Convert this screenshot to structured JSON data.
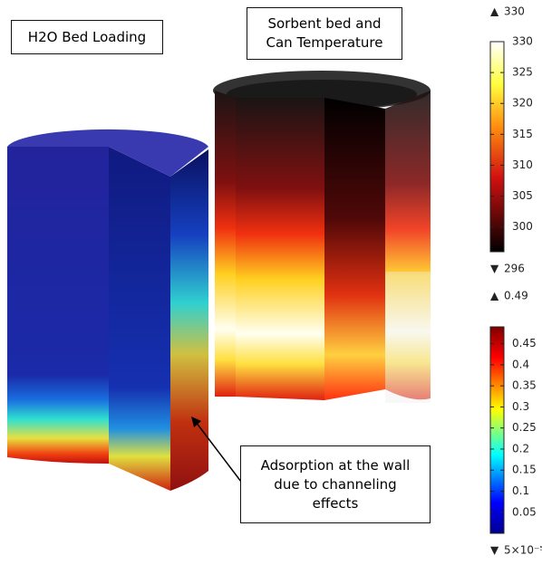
{
  "labels": {
    "h2o": "H2O Bed Loading",
    "sorbent": "Sorbent bed and Can Temperature",
    "annotation": "Adsorption at the wall due to channeling effects"
  },
  "temperature_colorbar": {
    "max": 330,
    "min": 296,
    "ticks": [
      300,
      305,
      310,
      315,
      320,
      325,
      330
    ]
  },
  "loading_colorbar": {
    "max": 0.49,
    "min": {
      "value": 5e-05,
      "label": "5×10⁻⁵"
    },
    "ticks": [
      0.05,
      0.1,
      0.15,
      0.2,
      0.25,
      0.3,
      0.35,
      0.4,
      0.45
    ]
  }
}
